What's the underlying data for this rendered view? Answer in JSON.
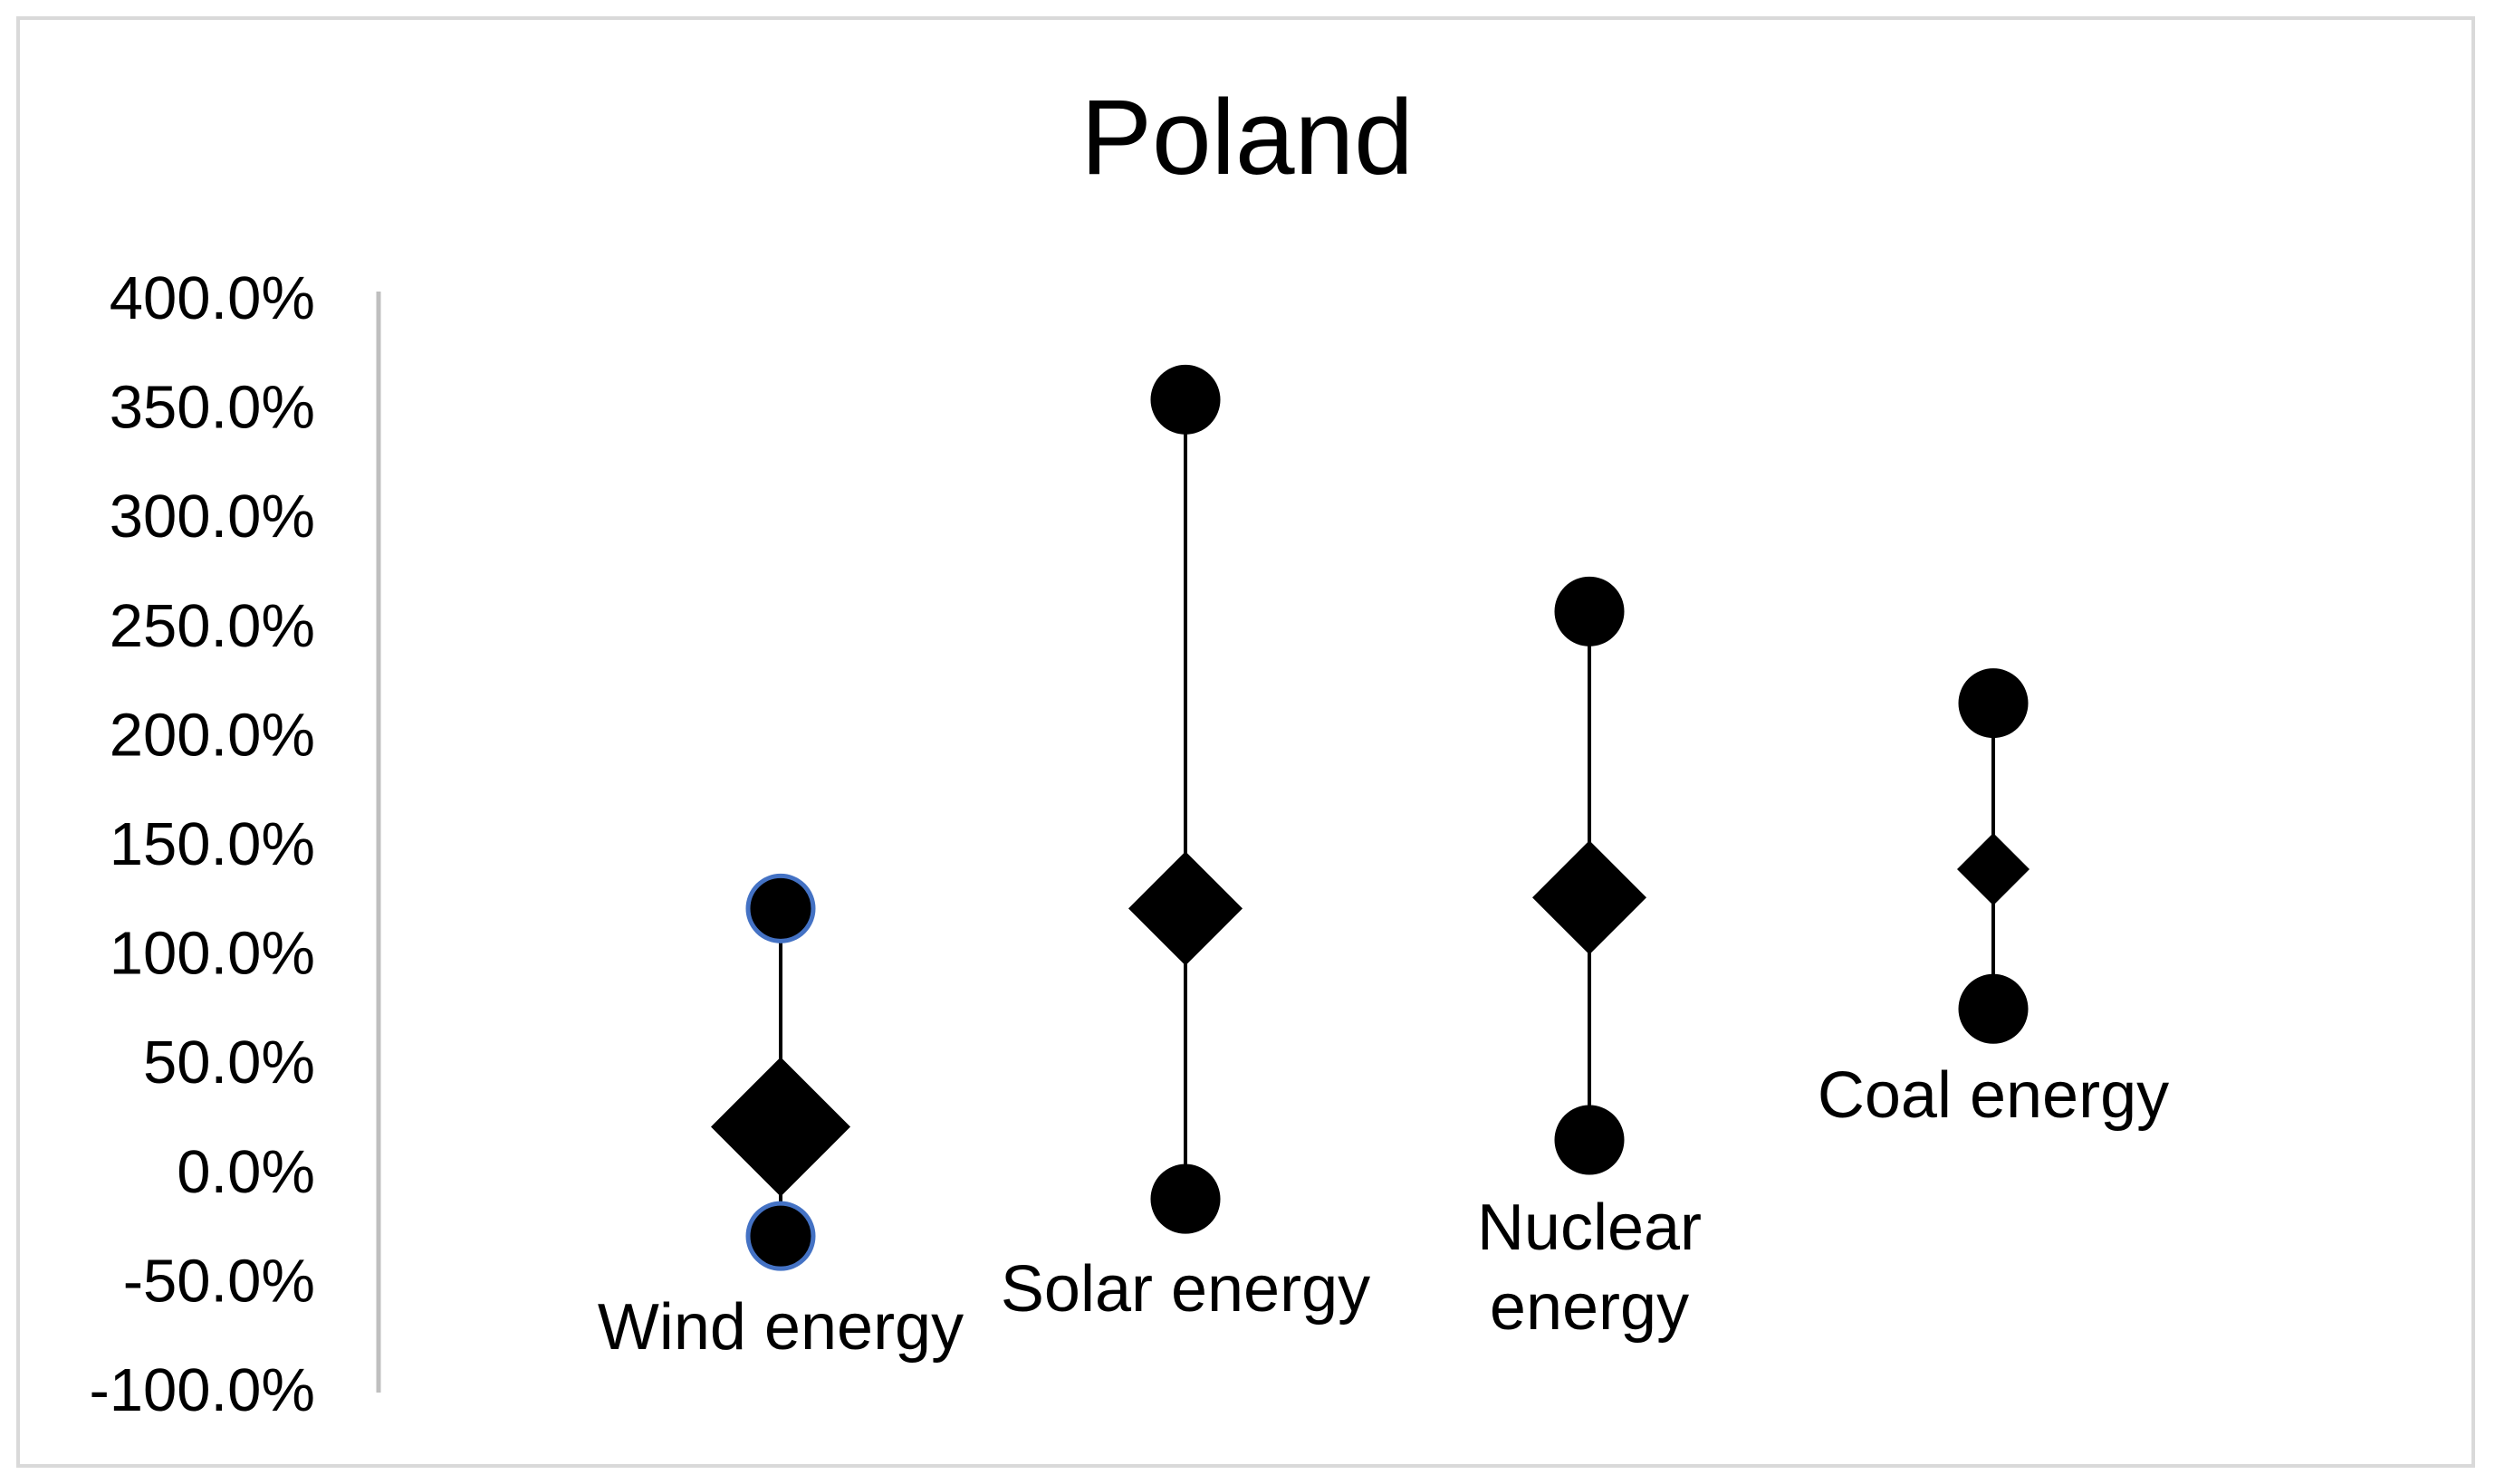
{
  "chart_data": {
    "type": "dot range",
    "title": "Poland",
    "xlabel": "",
    "ylabel": "",
    "ylim": [
      -1.0,
      4.0
    ],
    "y_ticks": [
      "400.0%",
      "350.0%",
      "300.0%",
      "250.0%",
      "200.0%",
      "150.0%",
      "100.0%",
      "50.0%",
      "0.0%",
      "-50.0%",
      "-100.0%"
    ],
    "y_tick_values": [
      4.0,
      3.5,
      3.0,
      2.5,
      2.0,
      1.5,
      1.0,
      0.5,
      0.0,
      -0.5,
      -1.0
    ],
    "grid": false,
    "legend": "none",
    "categories": [
      {
        "label_lines": [
          "Wind energy"
        ],
        "high": 1.2,
        "low": -0.3,
        "mid": 0.2,
        "mid_size": "large",
        "dot_outline": "#4472c4"
      },
      {
        "label_lines": [
          "Solar energy"
        ],
        "high": 3.53,
        "low": -0.13,
        "mid": 1.2,
        "mid_size": "medium",
        "dot_outline": "#000000"
      },
      {
        "label_lines": [
          "Nuclear",
          "energy"
        ],
        "high": 2.56,
        "low": 0.14,
        "mid": 1.25,
        "mid_size": "medium",
        "dot_outline": "#000000"
      },
      {
        "label_lines": [
          "Coal energy"
        ],
        "high": 2.14,
        "low": 0.74,
        "mid": 1.38,
        "mid_size": "small",
        "dot_outline": "#000000"
      }
    ],
    "colors": {
      "marker": "#000000",
      "axis": "#bfbfbf",
      "line": "#000000"
    }
  }
}
